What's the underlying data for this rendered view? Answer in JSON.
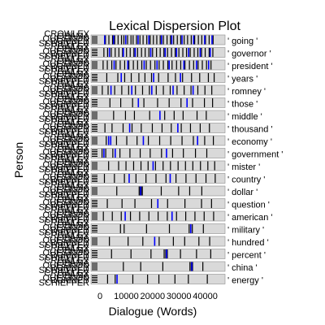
{
  "chart_data": {
    "type": "lexical-dispersion",
    "title": "Lexical Dispersion Plot",
    "xlabel": "Dialogue (Words)",
    "ylabel": "Person",
    "xlim": [
      0,
      46000
    ],
    "x_ticks": [
      0,
      10000,
      20000,
      30000,
      40000
    ],
    "x_tick_labels": [
      "0",
      "10000",
      "20000",
      "30000",
      "40000"
    ],
    "speakers": [
      "CROWLEY",
      "OBAMA",
      "QUESTION",
      "ROMNEY",
      "SCHIEFFER"
    ],
    "series_colors": {
      "blue": "#0000ff",
      "black": "#000000"
    },
    "panel_fill": "#d9d9d9",
    "words": [
      {
        "label": "' going '",
        "positions": [
          2100,
          3400,
          4800,
          5600,
          6900,
          8200,
          9100,
          10500,
          11800,
          12600,
          13900,
          15200,
          16400,
          17800,
          19100,
          20300,
          21600,
          22900,
          24100,
          25500,
          26800,
          28000,
          29400,
          30700,
          32000,
          33300,
          34700,
          36000,
          37400,
          38700,
          40100,
          41500,
          43000
        ],
        "blue": [
          1800,
          5200,
          9800,
          14500,
          18600,
          23400,
          27300,
          31200,
          35600,
          39800,
          42600
        ]
      },
      {
        "label": "' governor '",
        "positions": [
          1500,
          2900,
          4300,
          5800,
          7200,
          8600,
          10100,
          11500,
          12900,
          14300,
          15800,
          17200,
          18600,
          20000,
          21500,
          22900,
          24300,
          25700,
          27200,
          28600,
          30000,
          31500,
          32900,
          34300,
          35800,
          37200,
          38600,
          40000,
          41500,
          42900
        ],
        "blue": [
          3600,
          8900,
          13400,
          19300,
          24800,
          29100,
          33700,
          38100,
          41900
        ]
      },
      {
        "label": "' president '",
        "positions": [
          1200,
          2800,
          4500,
          6100,
          7700,
          9400,
          11000,
          12700,
          14300,
          15900,
          17600,
          19200,
          20900,
          22500,
          24100,
          25800,
          27400,
          29100,
          30700,
          32300,
          34000,
          35600,
          37300,
          38900,
          40500,
          42200
        ],
        "blue": [
          5400,
          10600,
          16800,
          21700,
          26300,
          31900,
          36700,
          41300
        ]
      },
      {
        "label": "' years '",
        "positions": [
          2600,
          6800,
          9400,
          11900,
          14800,
          17100,
          19600,
          22300,
          25900,
          28700,
          31400,
          34800,
          37900,
          41200,
          43400
        ],
        "blue": [
          8100,
          20400,
          30600
        ]
      },
      {
        "label": "' romney '",
        "positions": [
          900,
          3100,
          5600,
          8300,
          10900,
          13500,
          16200,
          18800,
          21400,
          24100,
          26700,
          29300,
          32000,
          34600,
          37200,
          39900,
          42500
        ],
        "blue": [
          4200,
          12100,
          19700,
          27800,
          35400
        ]
      },
      {
        "label": "' those '",
        "positions": [
          3800,
          7900,
          12400,
          16700,
          21900,
          26300,
          30800,
          35200,
          39700,
          42800
        ],
        "blue": [
          14600,
          33100
        ]
      },
      {
        "label": "' middle '",
        "positions": [
          5200,
          9700,
          13100,
          18900,
          24600,
          28200,
          31600,
          36900,
          40400
        ],
        "blue": [
          22800
        ]
      },
      {
        "label": "' thousand '",
        "positions": [
          1900,
          4600,
          8800,
          12200,
          15700,
          19900,
          23600,
          27100,
          30900,
          34400,
          38100,
          41600
        ],
        "blue": [
          11300,
          29600
        ]
      },
      {
        "label": "' economy '",
        "positions": [
          2400,
          6300,
          10200,
          14100,
          18400,
          22700,
          26900,
          31200,
          35500,
          39800,
          43100
        ],
        "blue": [
          3300,
          4100,
          16500,
          37100
        ]
      },
      {
        "label": "' government '",
        "positions": [
          800,
          2200,
          4900,
          7600,
          11400,
          15300,
          19100,
          23400,
          27600,
          31700,
          36300,
          40600
        ],
        "blue": [
          1500,
          5800,
          25300
        ]
      },
      {
        "label": "' mister '",
        "positions": [
          3300,
          7100,
          9900,
          12800,
          15600,
          18300,
          21100,
          24000,
          26800,
          29700,
          32500,
          35300,
          38200,
          41000,
          43600
        ],
        "blue": [
          20200
        ]
      },
      {
        "label": "' country '",
        "positions": [
          1700,
          5500,
          9300,
          13700,
          17500,
          21300,
          25100,
          28900,
          32700,
          36500,
          40300,
          43800
        ],
        "blue": [
          11100,
          26700
        ]
      },
      {
        "label": "' dollar '",
        "positions": [
          6400,
          14900,
          15300,
          15700,
          16100,
          23300,
          29900,
          34100,
          38700
        ],
        "blue": [
          15500
        ]
      },
      {
        "label": "' question '",
        "positions": [
          2800,
          8400,
          13300,
          19600,
          25700,
          32300,
          38600,
          42400
        ],
        "blue": [
          22000
        ]
      },
      {
        "label": "' american '",
        "positions": [
          1300,
          4700,
          8100,
          11600,
          15100,
          18600,
          22100,
          25600,
          29100,
          32600,
          36100,
          39600,
          43200
        ],
        "blue": [
          9600,
          27400
        ]
      },
      {
        "label": "' military '",
        "positions": [
          7800,
          9200,
          17700,
          26400,
          33900,
          35100,
          39300
        ],
        "blue": [
          34500
        ]
      },
      {
        "label": "' hundred '",
        "positions": [
          3600,
          10700,
          16300,
          22500,
          27900,
          32200,
          37600,
          41700
        ],
        "blue": [
          20800
        ]
      },
      {
        "label": "' percent '",
        "positions": [
          4400,
          11800,
          19400,
          24400,
          25000,
          25600,
          30600,
          36700,
          42100
        ],
        "blue": [
          25300
        ]
      },
      {
        "label": "' china '",
        "positions": [
          8900,
          15500,
          23900,
          34200,
          34700,
          35200,
          39100
        ],
        "blue": [
          34900
        ]
      },
      {
        "label": "' energy '",
        "positions": [
          2900,
          5800,
          12500,
          18100,
          22400,
          28500,
          33600,
          40800
        ],
        "blue": [
          6500
        ]
      }
    ]
  }
}
